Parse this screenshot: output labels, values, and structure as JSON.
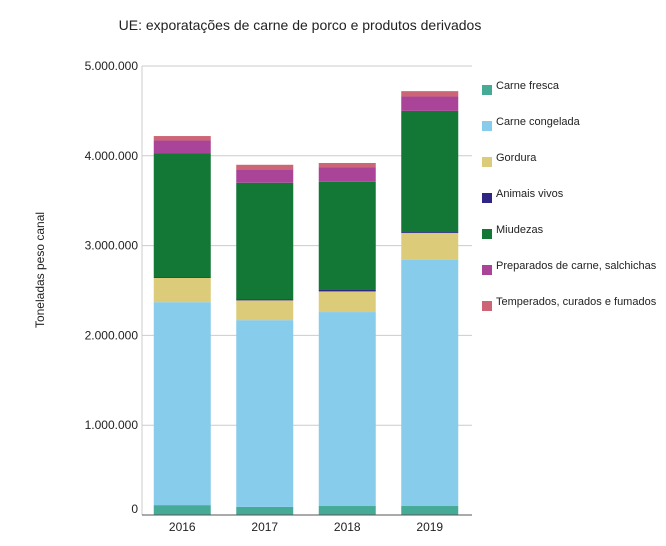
{
  "chart_data": {
    "type": "bar",
    "stacked": true,
    "title": "UE: exporatações de carne de porco e produtos derivados",
    "ylabel": "Toneladas peso canal",
    "xlabel": "",
    "categories": [
      "2016",
      "2017",
      "2018",
      "2019"
    ],
    "ylim": [
      0,
      5000000
    ],
    "yticks": [
      0,
      1000000,
      2000000,
      3000000,
      4000000,
      5000000
    ],
    "ytick_labels": [
      "0",
      "1.000.000",
      "2.000.000",
      "3.000.000",
      "4.000.000",
      "5.000.000"
    ],
    "grid": true,
    "legend_position": "right",
    "series": [
      {
        "name": "Carne fresca",
        "color": "#45ab96",
        "values": [
          110000,
          90000,
          100000,
          100000
        ]
      },
      {
        "name": "Carne congelada",
        "color": "#88ccec",
        "values": [
          2260000,
          2080000,
          2160000,
          2740000
        ]
      },
      {
        "name": "Gordura",
        "color": "#dccc7a",
        "values": [
          270000,
          220000,
          230000,
          300000
        ]
      },
      {
        "name": "Animais vivos",
        "color": "#2e2585",
        "values": [
          10000,
          10000,
          20000,
          10000
        ]
      },
      {
        "name": "Miudezas",
        "color": "#137735",
        "values": [
          1380000,
          1300000,
          1200000,
          1350000
        ]
      },
      {
        "name": "Preparados de carne, salchichas",
        "color": "#aa4499",
        "values": [
          140000,
          150000,
          160000,
          160000
        ]
      },
      {
        "name": "Temperados, curados e fumados",
        "color": "#cc6677",
        "values": [
          50000,
          50000,
          50000,
          60000
        ]
      }
    ]
  }
}
